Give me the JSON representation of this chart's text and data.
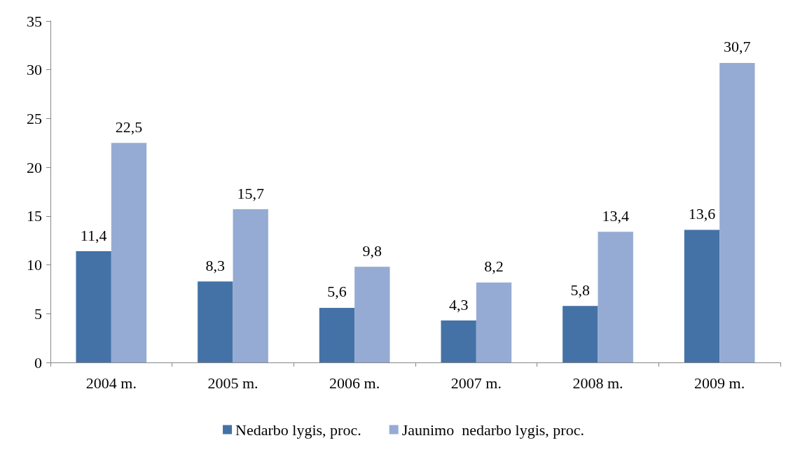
{
  "chart_data": {
    "type": "bar",
    "categories": [
      "2004 m.",
      "2005 m.",
      "2006 m.",
      "2007 m.",
      "2008 m.",
      "2009 m."
    ],
    "series": [
      {
        "name": "Nedarbo lygis, proc.",
        "color": "#4472a6",
        "values": [
          11.4,
          8.3,
          5.6,
          4.3,
          5.8,
          13.6
        ],
        "value_labels": [
          "11,4",
          "8,3",
          "5,6",
          "4,3",
          "5,8",
          "13,6"
        ]
      },
      {
        "name": "Jaunimo  nedarbo lygis, proc.",
        "color": "#95abd3",
        "values": [
          22.5,
          15.7,
          9.8,
          8.2,
          13.4,
          30.7
        ],
        "value_labels": [
          "22,5",
          "15,7",
          "9,8",
          "8,2",
          "13,4",
          "30,7"
        ]
      }
    ],
    "ylim": [
      0,
      35
    ],
    "yticks": [
      0,
      5,
      10,
      15,
      20,
      25,
      30,
      35
    ],
    "grid": false,
    "legend": "bottom"
  }
}
